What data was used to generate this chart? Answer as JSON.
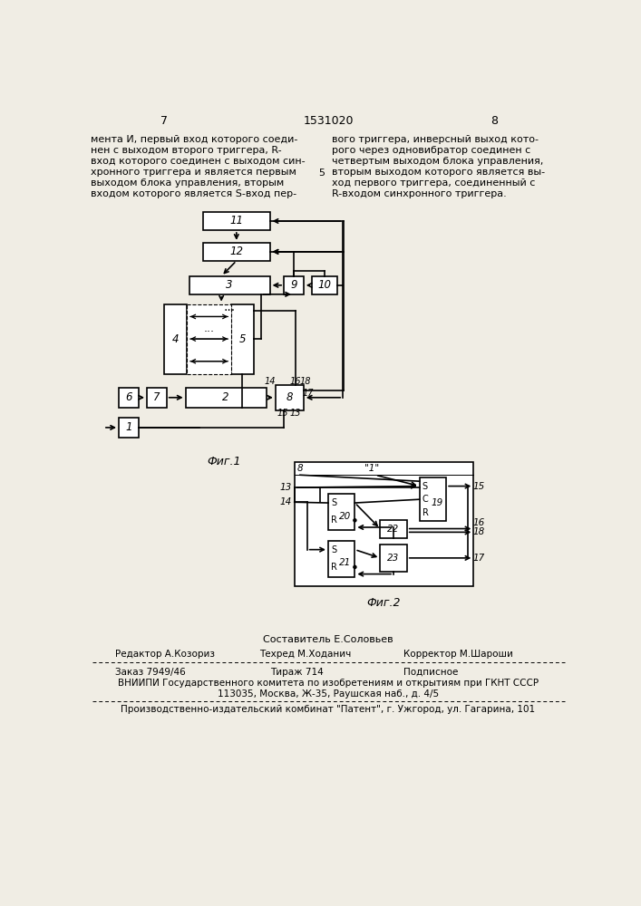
{
  "page_number_left": "7",
  "page_number_center": "1531020",
  "page_number_right": "8",
  "text_left": "мента И, первый вход которого соеди-\nнен с выходом второго триггера, R-\nвход которого соединен с выходом син-\nхронного триггера и является первым\nвыходом блока управления, вторым\nвходом которого является S-вход пер-",
  "text_right": "вого триггера, инверсный выход кото-\nрого через одновибратор соединен с\nчетвертым выходом блока управления,\nвторым выходом которого является вы-\nход первого триггера, соединенный с\nR-входом синхронного триггера.",
  "fig1_label": "Фиг.1",
  "fig2_label": "Фиг.2",
  "footer_composer": "Составитель Е.Соловьев",
  "footer_editor": "Редактор А.Козориз",
  "footer_techred": "Техред М.Хoданич",
  "footer_corrector": "Корректор М.Шароши",
  "footer_order": "Заказ 7949/46",
  "footer_tirazh": "Тираж 714",
  "footer_podpisnoe": "Подписное",
  "footer_vniiipi": "ВНИИПИ Государственного комитета по изобретениям и открытиям при ГКНТ СССР",
  "footer_address": "113035, Москва, Ж-35, Раушская наб., д. 4/5",
  "footer_proizv": "Производственно-издательский комбинат \"Патент\", г. Ужгород, ул. Гагарина, 101",
  "bg_color": "#f0ede4"
}
